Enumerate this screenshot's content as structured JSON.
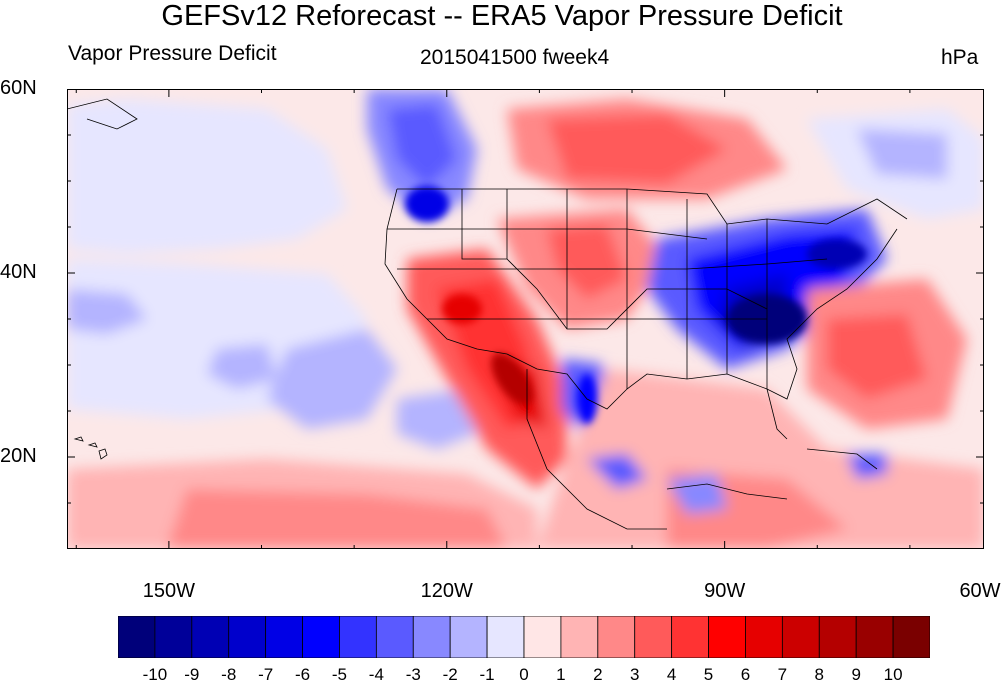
{
  "title": "GEFSv12 Reforecast -- ERA5 Vapor Pressure Deficit",
  "left_subtitle": "Vapor Pressure Deficit",
  "center_subtitle": "2015041500 fweek4",
  "right_subtitle": "hPa",
  "map": {
    "lon_range": [
      -161,
      -62
    ],
    "lat_range": [
      10,
      60
    ],
    "lat_labels": [
      {
        "text": "60N",
        "lat": 60
      },
      {
        "text": "40N",
        "lat": 40
      },
      {
        "text": "20N",
        "lat": 20
      }
    ],
    "lon_labels": [
      {
        "text": "150W",
        "lon": -150
      },
      {
        "text": "120W",
        "lon": -120
      },
      {
        "text": "90W",
        "lon": -90
      },
      {
        "text": "60W",
        "lon": -60
      }
    ],
    "colors": {
      "background": "#fce8e8",
      "land_outline": "#000000"
    }
  },
  "colorbar": {
    "labels": [
      "-10",
      "-9",
      "-8",
      "-7",
      "-6",
      "-5",
      "-4",
      "-3",
      "-2",
      "-1",
      "0",
      "1",
      "2",
      "3",
      "4",
      "5",
      "6",
      "7",
      "8",
      "9",
      "10"
    ],
    "colors": [
      "#00007a",
      "#000099",
      "#0000b4",
      "#0000cc",
      "#0000e6",
      "#0000ff",
      "#3333ff",
      "#5a5aff",
      "#8888ff",
      "#b4b4ff",
      "#e6e6ff",
      "#ffe6e6",
      "#ffb4b4",
      "#ff8888",
      "#ff5a5a",
      "#ff3333",
      "#ff0000",
      "#e60000",
      "#cc0000",
      "#b40000",
      "#990000",
      "#7a0000"
    ]
  }
}
